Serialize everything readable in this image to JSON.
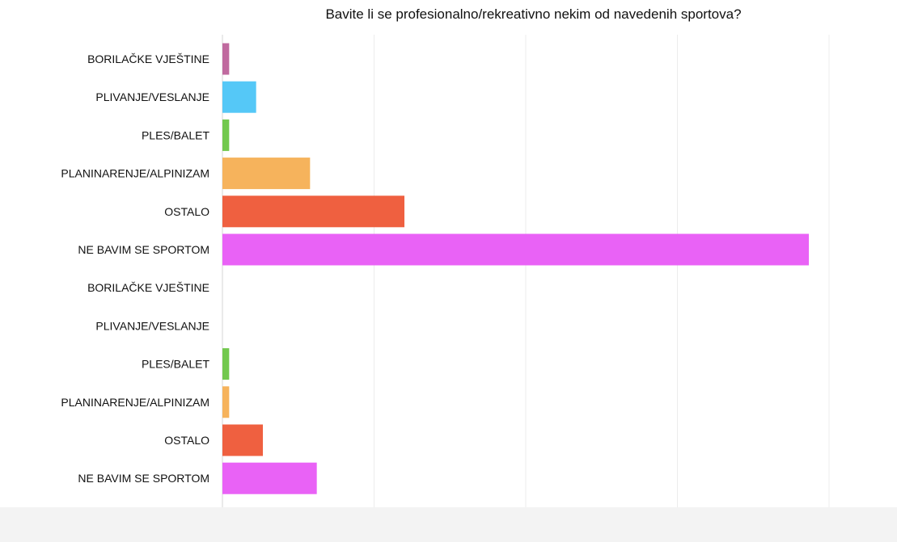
{
  "chart_data": {
    "type": "bar",
    "orientation": "horizontal",
    "title": "Bavite li se profesionalno/rekreativno nekim od navedenih sportova?",
    "xlim": [
      0,
      90
    ],
    "x_ticks": [
      "0",
      "23",
      "45",
      "68",
      "90"
    ],
    "grid": true,
    "categories": [
      "BORILAČKE VJEŠTINE",
      "PLIVANJE/VESLANJE",
      "PLES/BALET",
      "PLANINARENJE/ALPINIZAM",
      "OSTALO",
      "NE BAVIM SE SPORTOM",
      "BORILAČKE VJEŠTINE",
      "PLIVANJE/VESLANJE",
      "PLES/BALET",
      "PLANINARENJE/ALPINIZAM",
      "OSTALO",
      "NE BAVIM SE SPORTOM"
    ],
    "values": [
      1,
      5,
      1,
      13,
      27,
      87,
      0,
      0,
      1,
      1,
      6,
      14
    ],
    "colors": [
      "#c06a9f",
      "#55c8f7",
      "#72c84e",
      "#f6b35c",
      "#ef6040",
      "#e962f6",
      "#c06a9f",
      "#55c8f7",
      "#72c84e",
      "#f6b35c",
      "#ef6040",
      "#e962f6"
    ]
  }
}
